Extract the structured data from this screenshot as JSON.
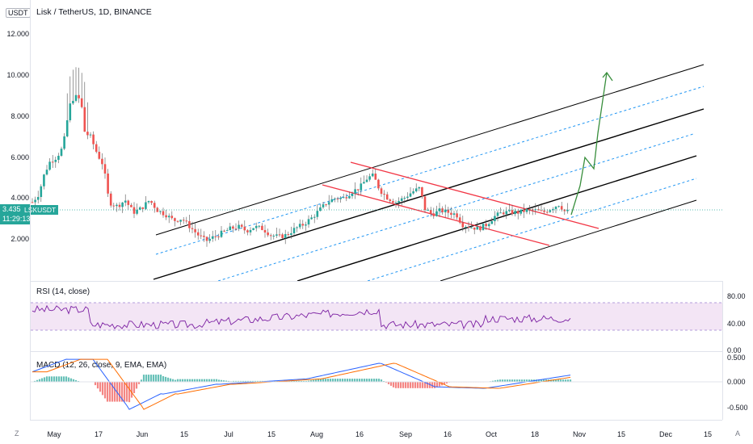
{
  "header": {
    "currency_tag": "USDT",
    "title": "Lisk / TetherUS, 1D, BINANCE"
  },
  "price_axis": {
    "labels": [
      "12.000",
      "10.000",
      "8.000",
      "6.000",
      "4.000",
      "2.000"
    ]
  },
  "current_price": {
    "value": "3.435",
    "countdown": "11:29:13",
    "symbol": "LSKUSDT",
    "color": "#26a69a"
  },
  "rsi": {
    "title": "RSI (14, close)",
    "labels": [
      "80.00",
      "40.00",
      "0.00"
    ],
    "line_color": "#7b1fa2",
    "band_color": "#f3e5f5"
  },
  "macd": {
    "title": "MACD (12, 26, close, 9, EMA, EMA)",
    "labels": [
      "0.500",
      "0.000",
      "-0.500"
    ],
    "macd_color": "#2962ff",
    "signal_color": "#ff6d00"
  },
  "time_axis": {
    "labels": [
      "May",
      "17",
      "Jun",
      "15",
      "Jul",
      "15",
      "Aug",
      "16",
      "Sep",
      "16",
      "Oct",
      "18",
      "Nov",
      "15",
      "Dec",
      "15"
    ]
  },
  "buttons": {
    "zoom": "Z",
    "auto": "A"
  },
  "colors": {
    "up": "#26a69a",
    "down": "#ef5350",
    "channel_black": "#000000",
    "channel_red": "#f23645",
    "channel_dashed": "#2196f3",
    "arrow": "#388e3c"
  }
}
